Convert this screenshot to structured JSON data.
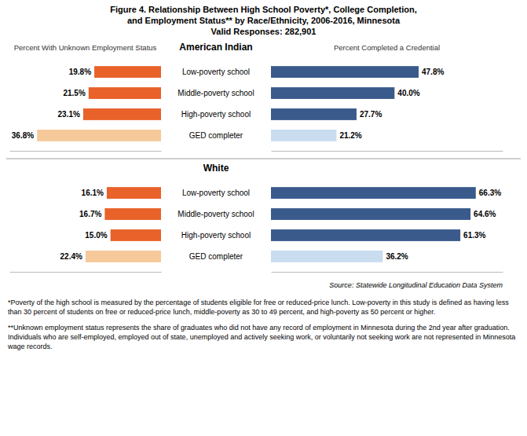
{
  "chart_data": {
    "type": "bar",
    "orientation": "horizontal",
    "data_labels": true,
    "tick_labels": false,
    "title": [
      "Figure 4. Relationship Between High School Poverty*, College Completion,",
      "and Employment Status** by Race/Ethnicity, 2006-2016, Minnesota",
      "Valid Responses: 282,901"
    ],
    "sections": [
      {
        "name": "American Indian",
        "categories": [
          "Low-poverty school",
          "Middle-poverty school",
          "High-poverty school",
          "GED completer"
        ],
        "series": [
          {
            "name": "Percent With Unknown Employment Status",
            "values": [
              19.8,
              21.5,
              23.1,
              36.8
            ],
            "value_labels": [
              "19.8%",
              "21.5%",
              "23.1%",
              "36.8%"
            ],
            "colors": [
              "#E8622A",
              "#E8622A",
              "#E8622A",
              "#F5C99A"
            ],
            "xlim": [
              45,
              0
            ],
            "xticks": []
          },
          {
            "name": "Percent Completed a Credential",
            "values": [
              47.8,
              40.0,
              27.7,
              21.2
            ],
            "value_labels": [
              "47.8%",
              "40.0%",
              "27.7%",
              "21.2%"
            ],
            "colors": [
              "#3A5A8C",
              "#3A5A8C",
              "#3A5A8C",
              "#C9DCF0"
            ],
            "xlim": [
              0,
              75
            ],
            "xticks": []
          }
        ]
      },
      {
        "name": "White",
        "categories": [
          "Low-poverty school",
          "Middle-poverty school",
          "High-poverty school",
          "GED completer"
        ],
        "series": [
          {
            "name": "Percent With Unknown Employment Status",
            "values": [
              16.1,
              16.7,
              15.0,
              22.4
            ],
            "value_labels": [
              "16.1%",
              "16.7%",
              "15.0%",
              "22.4%"
            ],
            "colors": [
              "#E8622A",
              "#E8622A",
              "#E8622A",
              "#F5C99A"
            ],
            "xlim": [
              45,
              0
            ],
            "xticks": []
          },
          {
            "name": "Percent Completed a Credential",
            "values": [
              66.3,
              64.6,
              61.3,
              36.2
            ],
            "value_labels": [
              "66.3%",
              "64.6%",
              "61.3%",
              "36.2%"
            ],
            "colors": [
              "#3A5A8C",
              "#3A5A8C",
              "#3A5A8C",
              "#C9DCF0"
            ],
            "xlim": [
              0,
              75
            ],
            "xticks": []
          }
        ]
      }
    ],
    "source": "Source: Statewide Longitudinal Education Data System",
    "notes": [
      "*Poverty of the high school is measured by the percentage of students eligible for free or reduced-price lunch. Low-poverty in this study is defined as having less than 30 percent of students on free or reduced-price lunch, middle-poverty as 30 to 49 percent, and high-poverty as 50 percent or higher.",
      "**Unknown employment status represents the share of graduates who did not have any record of employment in Minnesota during the 2nd year after graduation. Individuals who are self-employed, employed out of state, unemployed and actively seeking work, or voluntarily not seeking work are not represented in Minnesota wage records."
    ]
  }
}
